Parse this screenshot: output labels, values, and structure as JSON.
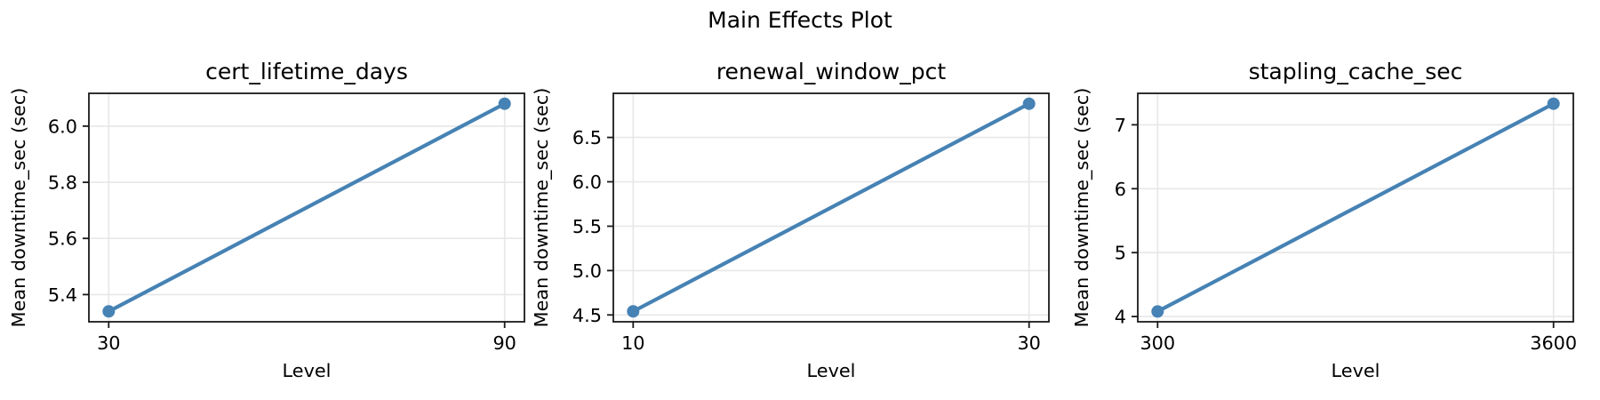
{
  "figure": {
    "title": "Main Effects Plot",
    "line_color": "#4682b4",
    "marker_color": "#4682b4",
    "grid_color": "#e7e7e7",
    "spine_color": "#1a1a1a",
    "tick_color": "#1a1a1a",
    "text_color": "#000000",
    "background_color": "#ffffff"
  },
  "chart_data": [
    {
      "type": "line",
      "title": "cert_lifetime_days",
      "xlabel": "Level",
      "ylabel": "Mean downtime_sec (sec)",
      "x": [
        30,
        90
      ],
      "x_tick_labels": [
        "30",
        "90"
      ],
      "y": [
        5.34,
        6.08
      ],
      "yticks": [
        5.4,
        5.6,
        5.8,
        6.0
      ],
      "ytick_labels": [
        "5.4",
        "5.6",
        "5.8",
        "6.0"
      ],
      "ylim": [
        5.303,
        6.117
      ],
      "grid": true,
      "legend": "none"
    },
    {
      "type": "line",
      "title": "renewal_window_pct",
      "xlabel": "Level",
      "ylabel": "Mean downtime_sec (sec)",
      "x": [
        10,
        30
      ],
      "x_tick_labels": [
        "10",
        "30"
      ],
      "y": [
        4.54,
        6.88
      ],
      "yticks": [
        4.5,
        5.0,
        5.5,
        6.0,
        6.5
      ],
      "ytick_labels": [
        "4.5",
        "5.0",
        "5.5",
        "6.0",
        "6.5"
      ],
      "ylim": [
        4.423,
        6.997
      ],
      "grid": true,
      "legend": "none"
    },
    {
      "type": "line",
      "title": "stapling_cache_sec",
      "xlabel": "Level",
      "ylabel": "Mean downtime_sec (sec)",
      "x": [
        300,
        3600
      ],
      "x_tick_labels": [
        "300",
        "3600"
      ],
      "y": [
        4.08,
        7.33
      ],
      "yticks": [
        4,
        5,
        6,
        7
      ],
      "ytick_labels": [
        "4",
        "5",
        "6",
        "7"
      ],
      "ylim": [
        3.918,
        7.493
      ],
      "grid": true,
      "legend": "none"
    }
  ]
}
